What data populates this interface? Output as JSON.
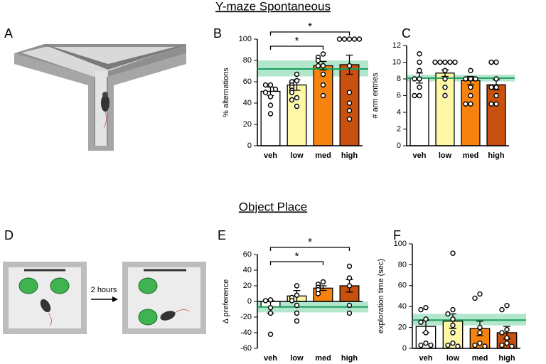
{
  "sections": [
    "Y-maze Spontaneous",
    "Object Place"
  ],
  "panels": [
    "A",
    "D"
  ],
  "illustration_label": "2 hours",
  "chart_data": [
    {
      "type": "bar",
      "panel": "B",
      "y_label": "% alternations",
      "categories": [
        "veh",
        "low",
        "med",
        "high"
      ],
      "values": [
        51,
        57,
        75,
        76
      ],
      "errors": [
        4,
        5,
        4,
        9
      ],
      "colors": [
        "#ffffff",
        "#fdf7a6",
        "#f6820f",
        "#c9510f"
      ],
      "points": [
        [
          57,
          57,
          53,
          50,
          46,
          38,
          30
        ],
        [
          67,
          61,
          60,
          57,
          55,
          52,
          50,
          45,
          43,
          37
        ],
        [
          86,
          83,
          80,
          75,
          75,
          67,
          57,
          47
        ],
        [
          100,
          100,
          100,
          100,
          100,
          75,
          50,
          40,
          33,
          25
        ]
      ],
      "control_mean": 72,
      "control_band": [
        65,
        80
      ],
      "band_color": "#9fe0c0",
      "mean_color": "#1a9e5a",
      "ylim": [
        0,
        100
      ],
      "yticks": [
        0,
        20,
        40,
        60,
        80,
        100
      ],
      "comparisons": [
        {
          "groups": [
            0,
            2
          ],
          "label": "*"
        },
        {
          "groups": [
            0,
            3
          ],
          "label": "*"
        }
      ]
    },
    {
      "type": "bar",
      "panel": "C",
      "y_label": "# arm entries",
      "categories": [
        "veh",
        "low",
        "med",
        "high"
      ],
      "values": [
        8.1,
        8.7,
        7.8,
        7.3
      ],
      "errors": [
        0.6,
        0.4,
        0.5,
        0.6
      ],
      "colors": [
        "#ffffff",
        "#fdf7a6",
        "#f6820f",
        "#c9510f"
      ],
      "points": [
        [
          11,
          10,
          9,
          8,
          8,
          7,
          6,
          6
        ],
        [
          10,
          10,
          10,
          10,
          10,
          9,
          8,
          7,
          6
        ],
        [
          9,
          8,
          8,
          8,
          7,
          6,
          5,
          5
        ],
        [
          10,
          10,
          8,
          7,
          7,
          6,
          5,
          5
        ]
      ],
      "control_mean": 8.1,
      "control_band": [
        7.7,
        8.5
      ],
      "band_color": "#9fe0c0",
      "mean_color": "#1a9e5a",
      "ylim": [
        0,
        12
      ],
      "yticks": [
        0,
        2,
        4,
        6,
        8,
        10,
        12
      ],
      "comparisons": []
    },
    {
      "type": "bar",
      "panel": "E",
      "y_label": "Δ preference",
      "categories": [
        "veh",
        "low",
        "med",
        "high"
      ],
      "values": [
        -7,
        7,
        17,
        20
      ],
      "errors": [
        8,
        7,
        3,
        8
      ],
      "colors": [
        "#ffffff",
        "#fdf7a6",
        "#f6820f",
        "#c9510f"
      ],
      "points": [
        [
          2,
          1,
          -8,
          -15,
          -42
        ],
        [
          20,
          8,
          5,
          1,
          -5,
          -15,
          -25
        ],
        [
          25,
          22,
          18,
          15,
          10
        ],
        [
          45,
          30,
          20,
          -5,
          -15
        ]
      ],
      "control_mean": -7,
      "control_band": [
        -14,
        0
      ],
      "band_color": "#9fe0c0",
      "mean_color": "#1a9e5a",
      "ylim": [
        -60,
        60
      ],
      "yticks": [
        -60,
        -40,
        -20,
        0,
        20,
        40,
        60
      ],
      "comparisons": [
        {
          "groups": [
            0,
            2
          ],
          "label": "*"
        },
        {
          "groups": [
            0,
            3
          ],
          "label": "*"
        }
      ]
    },
    {
      "type": "bar",
      "panel": "F",
      "y_label": "exploration time (sec)",
      "categories": [
        "veh",
        "low",
        "med",
        "high"
      ],
      "values": [
        21,
        26,
        19,
        15
      ],
      "errors": [
        6,
        7,
        7,
        6
      ],
      "colors": [
        "#ffffff",
        "#fdf7a6",
        "#f6820f",
        "#c9510f"
      ],
      "points": [
        [
          39,
          37,
          28,
          25,
          15,
          5,
          3,
          3
        ],
        [
          91,
          37,
          33,
          28,
          22,
          15,
          5,
          3,
          2
        ],
        [
          52,
          48,
          20,
          15,
          5,
          3,
          2
        ],
        [
          41,
          37,
          18,
          15,
          10,
          5,
          3,
          2
        ]
      ],
      "control_mean": 27,
      "control_band": [
        22,
        33
      ],
      "band_color": "#9fe0c0",
      "mean_color": "#1a9e5a",
      "ylim": [
        0,
        100
      ],
      "yticks": [
        0,
        20,
        40,
        60,
        80,
        100
      ],
      "comparisons": []
    }
  ]
}
